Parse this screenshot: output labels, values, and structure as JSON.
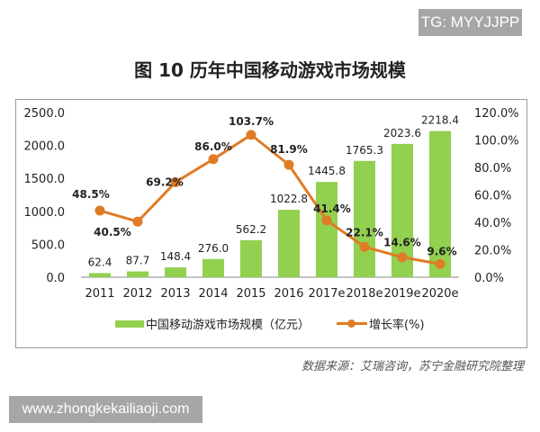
{
  "watermark_top": "TG: MYYJJPP",
  "watermark_bottom": "www.zhongkekailiaoji.com",
  "source": "数据来源：艾瑞咨询，苏宁金融研究院整理",
  "colors": {
    "bars": "#92d050",
    "line": "#e07b25"
  },
  "chart_data": {
    "type": "bar+line",
    "title": "图 10 历年中国移动游戏市场规模",
    "categories": [
      "2011",
      "2012",
      "2013",
      "2014",
      "2015",
      "2016",
      "2017e",
      "2018e",
      "2019e",
      "2020e"
    ],
    "series": [
      {
        "name": "中国移动游戏市场规模（亿元）",
        "type": "bar",
        "axis": "left",
        "values": [
          62.4,
          87.7,
          148.4,
          276.0,
          562.2,
          1022.8,
          1445.8,
          1765.3,
          2023.6,
          2218.4
        ],
        "labels": [
          "62.4",
          "87.7",
          "148.4",
          "276.0",
          "562.2",
          "1022.8",
          "1445.8",
          "1765.3",
          "2023.6",
          "2218.4"
        ]
      },
      {
        "name": "增长率(%)",
        "type": "line",
        "axis": "right",
        "values": [
          48.5,
          40.5,
          69.2,
          86.0,
          103.7,
          81.9,
          41.4,
          22.1,
          14.6,
          9.6
        ],
        "labels": [
          "48.5%",
          "40.5%",
          "69.2%",
          "86.0%",
          "103.7%",
          "81.9%",
          "41.4%",
          "22.1%",
          "14.6%",
          "9.6%"
        ]
      }
    ],
    "y_left": {
      "lim": [
        0,
        2500
      ],
      "ticks": [
        "0.0",
        "500.0",
        "1000.0",
        "1500.0",
        "2000.0",
        "2500.0"
      ]
    },
    "y_right": {
      "lim": [
        0,
        120
      ],
      "ticks": [
        "0.0%",
        "20.0%",
        "40.0%",
        "60.0%",
        "80.0%",
        "100.0%",
        "120.0%"
      ]
    },
    "grid": false,
    "legend": "bottom"
  }
}
